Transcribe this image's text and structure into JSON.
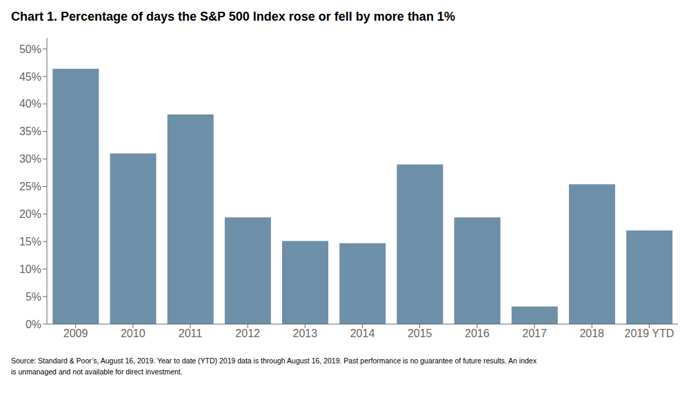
{
  "chart_data": {
    "type": "bar",
    "title": "Chart 1. Percentage of days the S&P 500 Index rose or fell by more than 1%",
    "categories": [
      "2009",
      "2010",
      "2011",
      "2012",
      "2013",
      "2014",
      "2015",
      "2016",
      "2017",
      "2018",
      "2019 YTD"
    ],
    "values": [
      0.464,
      0.31,
      0.381,
      0.194,
      0.151,
      0.147,
      0.29,
      0.194,
      0.032,
      0.254,
      0.17
    ],
    "color": "#6e8fa8",
    "ylim": [
      0,
      0.52
    ],
    "yticks": [
      {
        "value": 0.0,
        "label": "0%"
      },
      {
        "value": 0.05,
        "label": "5%"
      },
      {
        "value": 0.1,
        "label": "10%"
      },
      {
        "value": 0.15,
        "label": "15%"
      },
      {
        "value": 0.2,
        "label": "20%"
      },
      {
        "value": 0.25,
        "label": "25%"
      },
      {
        "value": 0.3,
        "label": "30%"
      },
      {
        "value": 0.35,
        "label": "35%"
      },
      {
        "value": 0.4,
        "label": "40%"
      },
      {
        "value": 0.45,
        "label": "45%"
      },
      {
        "value": 0.5,
        "label": "50%"
      }
    ],
    "grid": false,
    "annotations": [
      "Source: Standard & Poor’s, August 16, 2019. Year to date (YTD) 2019 data is through August 16, 2019. Past performance is no guarantee of future results. An index",
      "is unmanaged and not available for direct investment."
    ]
  }
}
